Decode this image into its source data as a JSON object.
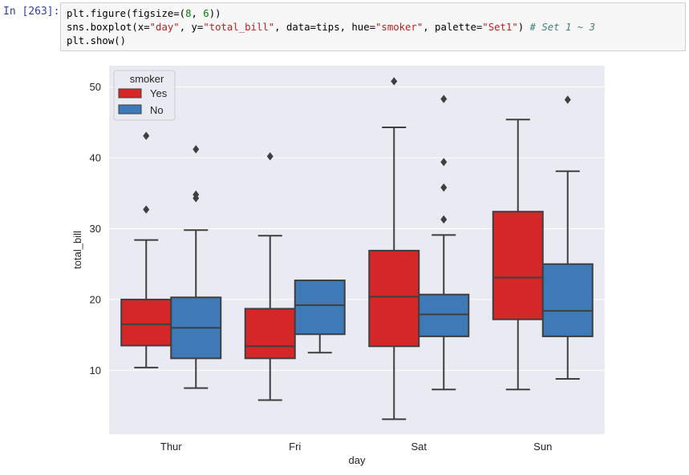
{
  "prompt": "In [263]:",
  "code": {
    "line1": {
      "a": "plt.figure(figsize=(",
      "n1": "8",
      "b": ", ",
      "n2": "6",
      "c": "))"
    },
    "line2": {
      "a": "sns.boxplot(x=",
      "s1": "\"day\"",
      "b": ", y=",
      "s2": "\"total_bill\"",
      "c": ", data=tips, hue=",
      "s3": "\"smoker\"",
      "d": ", palette=",
      "s4": "\"Set1\"",
      "e": ") ",
      "comment": "# Set 1 ~ 3"
    },
    "line3": "plt.show()"
  },
  "colors": {
    "yes": "#d62728",
    "no": "#3d7ab7",
    "panel": "#eaeaf2",
    "line": "#3f3f3f"
  },
  "chart_data": {
    "type": "boxplot",
    "xlabel": "day",
    "ylabel": "total_bill",
    "ylim": [
      1,
      53
    ],
    "yticks": [
      10,
      20,
      30,
      40,
      50
    ],
    "categories": [
      "Thur",
      "Fri",
      "Sat",
      "Sun"
    ],
    "legend": {
      "title": "smoker",
      "position": "top-left",
      "entries": [
        "Yes",
        "No"
      ]
    },
    "series": [
      {
        "name": "Yes",
        "boxes": [
          {
            "day": "Thur",
            "whislo": 10.4,
            "q1": 13.5,
            "med": 16.5,
            "q3": 20.0,
            "whishi": 28.4,
            "fliers": [
              43.1,
              32.7
            ]
          },
          {
            "day": "Fri",
            "whislo": 5.8,
            "q1": 11.7,
            "med": 13.4,
            "q3": 18.7,
            "whishi": 29.0,
            "fliers": [
              40.2
            ]
          },
          {
            "day": "Sat",
            "whislo": 3.1,
            "q1": 13.4,
            "med": 20.4,
            "q3": 26.9,
            "whishi": 44.3,
            "fliers": [
              50.8
            ]
          },
          {
            "day": "Sun",
            "whislo": 7.3,
            "q1": 17.2,
            "med": 23.1,
            "q3": 32.4,
            "whishi": 45.4,
            "fliers": []
          }
        ]
      },
      {
        "name": "No",
        "boxes": [
          {
            "day": "Thur",
            "whislo": 7.5,
            "q1": 11.7,
            "med": 16.0,
            "q3": 20.3,
            "whishi": 29.8,
            "fliers": [
              41.2,
              34.8,
              34.3
            ]
          },
          {
            "day": "Fri",
            "whislo": 12.5,
            "q1": 15.1,
            "med": 19.2,
            "q3": 22.7,
            "whishi": 22.7,
            "fliers": []
          },
          {
            "day": "Sat",
            "whislo": 7.3,
            "q1": 14.8,
            "med": 17.9,
            "q3": 20.7,
            "whishi": 29.1,
            "fliers": [
              48.3,
              39.4,
              35.8,
              31.3
            ]
          },
          {
            "day": "Sun",
            "whislo": 8.8,
            "q1": 14.8,
            "med": 18.4,
            "q3": 25.0,
            "whishi": 38.1,
            "fliers": [
              48.2
            ]
          }
        ]
      }
    ]
  }
}
